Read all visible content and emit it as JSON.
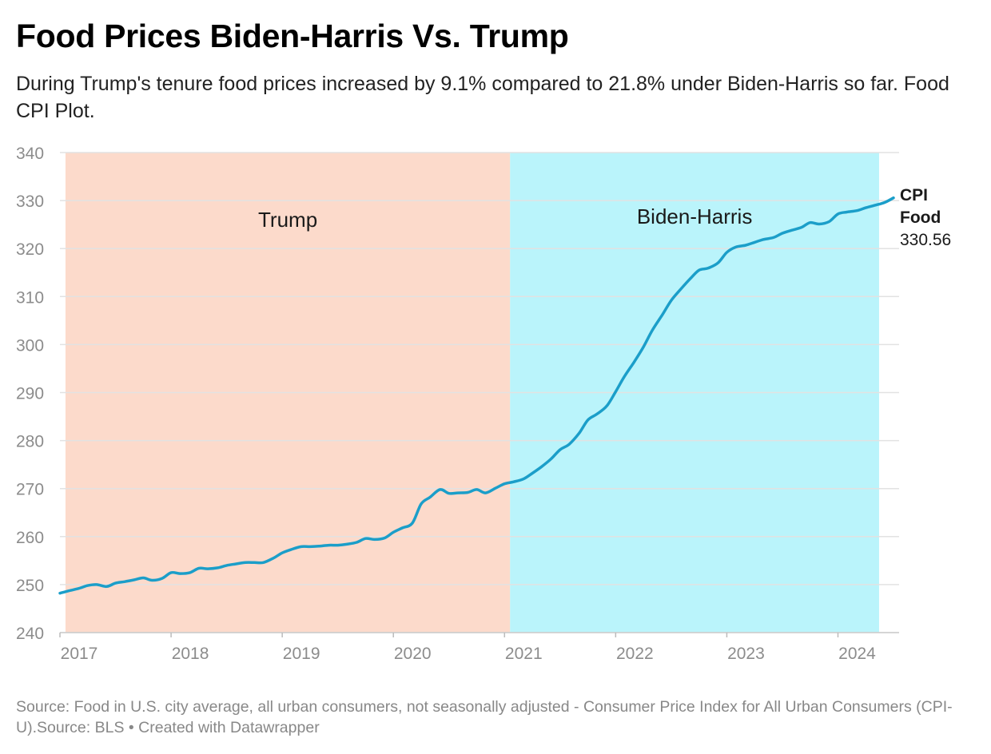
{
  "header": {
    "title": "Food Prices Biden-Harris Vs. Trump",
    "subtitle": "During Trump's tenure food prices increased by 9.1% compared to 21.8% under Biden-Harris so far. Food CPI Plot."
  },
  "footer": {
    "source": "Source: Food in U.S. city average, all urban consumers, not seasonally adjusted - Consumer Price Index for All Urban Consumers (CPI-U).Source: BLS",
    "separator": " • ",
    "credit": "Created with Datawrapper"
  },
  "colors": {
    "line": "#1b9ec9",
    "trump_band": "#fcdacb",
    "biden_band": "#baf4fb",
    "grid": "#e2e2e2",
    "axis_text": "#8c8c8c"
  },
  "chart_data": {
    "type": "line",
    "title": "Food Prices Biden-Harris Vs. Trump",
    "ylim": [
      240,
      340
    ],
    "yticks": [
      240,
      250,
      260,
      270,
      280,
      290,
      300,
      310,
      320,
      330,
      340
    ],
    "xlim": [
      2017.0,
      2024.55
    ],
    "xticks": [
      "2017",
      "2018",
      "2019",
      "2020",
      "2021",
      "2022",
      "2023",
      "2024"
    ],
    "grid": true,
    "bands": [
      {
        "label": "Trump",
        "start": 2017.05,
        "end": 2021.05
      },
      {
        "label": "Biden-Harris",
        "start": 2021.05,
        "end": 2024.37
      }
    ],
    "series": [
      {
        "name": "CPI Food",
        "end_label": {
          "line1": "CPI",
          "line2": "Food",
          "value": "330.56"
        },
        "points": [
          [
            2017.0,
            248.2
          ],
          [
            2017.08,
            248.7
          ],
          [
            2017.17,
            249.2
          ],
          [
            2017.25,
            249.8
          ],
          [
            2017.33,
            250.0
          ],
          [
            2017.42,
            249.6
          ],
          [
            2017.5,
            250.3
          ],
          [
            2017.58,
            250.6
          ],
          [
            2017.67,
            251.0
          ],
          [
            2017.75,
            251.4
          ],
          [
            2017.83,
            250.9
          ],
          [
            2017.92,
            251.3
          ],
          [
            2018.0,
            252.5
          ],
          [
            2018.08,
            252.3
          ],
          [
            2018.17,
            252.5
          ],
          [
            2018.25,
            253.4
          ],
          [
            2018.33,
            253.3
          ],
          [
            2018.42,
            253.5
          ],
          [
            2018.5,
            254.0
          ],
          [
            2018.58,
            254.3
          ],
          [
            2018.67,
            254.6
          ],
          [
            2018.75,
            254.6
          ],
          [
            2018.83,
            254.6
          ],
          [
            2018.92,
            255.5
          ],
          [
            2019.0,
            256.6
          ],
          [
            2019.08,
            257.3
          ],
          [
            2019.17,
            257.9
          ],
          [
            2019.25,
            257.9
          ],
          [
            2019.33,
            258.0
          ],
          [
            2019.42,
            258.2
          ],
          [
            2019.5,
            258.2
          ],
          [
            2019.58,
            258.4
          ],
          [
            2019.67,
            258.8
          ],
          [
            2019.75,
            259.6
          ],
          [
            2019.83,
            259.4
          ],
          [
            2019.92,
            259.7
          ],
          [
            2020.0,
            260.9
          ],
          [
            2020.08,
            261.8
          ],
          [
            2020.17,
            262.8
          ],
          [
            2020.25,
            266.8
          ],
          [
            2020.33,
            268.2
          ],
          [
            2020.42,
            269.8
          ],
          [
            2020.5,
            269.0
          ],
          [
            2020.58,
            269.1
          ],
          [
            2020.67,
            269.2
          ],
          [
            2020.75,
            269.8
          ],
          [
            2020.83,
            269.1
          ],
          [
            2020.92,
            270.1
          ],
          [
            2021.0,
            271.0
          ],
          [
            2021.08,
            271.4
          ],
          [
            2021.17,
            272.0
          ],
          [
            2021.25,
            273.2
          ],
          [
            2021.33,
            274.5
          ],
          [
            2021.42,
            276.2
          ],
          [
            2021.5,
            278.1
          ],
          [
            2021.58,
            279.2
          ],
          [
            2021.67,
            281.5
          ],
          [
            2021.75,
            284.3
          ],
          [
            2021.83,
            285.5
          ],
          [
            2021.92,
            287.2
          ],
          [
            2022.0,
            290.2
          ],
          [
            2022.08,
            293.4
          ],
          [
            2022.17,
            296.5
          ],
          [
            2022.25,
            299.5
          ],
          [
            2022.33,
            303.0
          ],
          [
            2022.42,
            306.2
          ],
          [
            2022.5,
            309.2
          ],
          [
            2022.58,
            311.4
          ],
          [
            2022.67,
            313.7
          ],
          [
            2022.75,
            315.5
          ],
          [
            2022.83,
            315.9
          ],
          [
            2022.92,
            317.0
          ],
          [
            2023.0,
            319.2
          ],
          [
            2023.08,
            320.3
          ],
          [
            2023.17,
            320.7
          ],
          [
            2023.25,
            321.3
          ],
          [
            2023.33,
            321.9
          ],
          [
            2023.42,
            322.3
          ],
          [
            2023.5,
            323.2
          ],
          [
            2023.58,
            323.8
          ],
          [
            2023.67,
            324.4
          ],
          [
            2023.75,
            325.4
          ],
          [
            2023.83,
            325.1
          ],
          [
            2023.92,
            325.6
          ],
          [
            2024.0,
            327.2
          ],
          [
            2024.08,
            327.6
          ],
          [
            2024.17,
            327.9
          ],
          [
            2024.25,
            328.5
          ],
          [
            2024.33,
            329.0
          ],
          [
            2024.42,
            329.6
          ],
          [
            2024.5,
            330.56
          ]
        ]
      }
    ]
  }
}
